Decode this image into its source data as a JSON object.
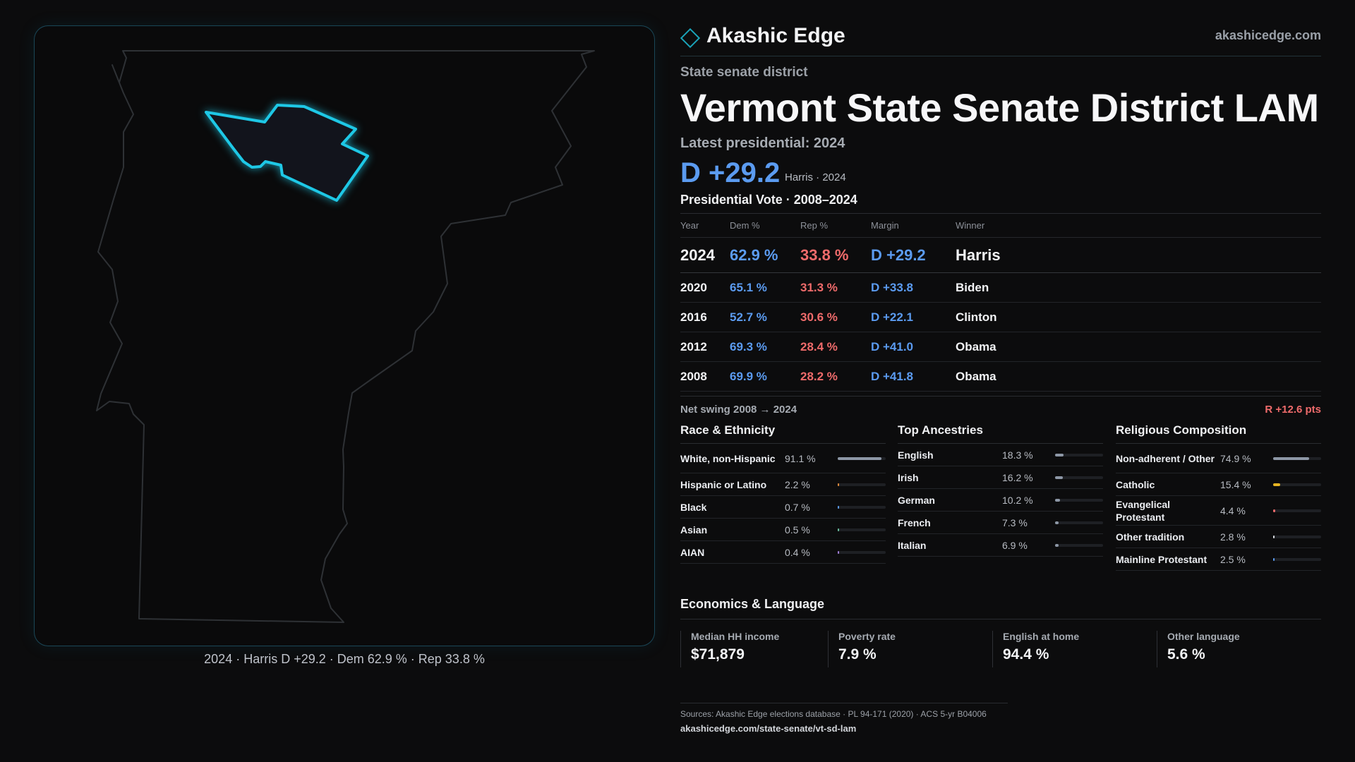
{
  "brand": {
    "name": "Akashic Edge",
    "url": "akashicedge.com",
    "accent": "#1aa3b8"
  },
  "header": {
    "kicker": "State senate district",
    "title": "Vermont State Senate District LAM",
    "latest_label": "Latest presidential: 2024",
    "margin": "D +29.2",
    "margin_sub": "Harris · 2024"
  },
  "votes": {
    "title": "Presidential Vote · 2008–2024",
    "headers": [
      "Year",
      "Dem %",
      "Rep %",
      "Margin",
      "Winner"
    ],
    "rows": [
      {
        "year": "2024",
        "dem": "62.9 %",
        "rep": "33.8 %",
        "margin": "D +29.2",
        "winner": "Harris"
      },
      {
        "year": "2020",
        "dem": "65.1 %",
        "rep": "31.3 %",
        "margin": "D +33.8",
        "winner": "Biden"
      },
      {
        "year": "2016",
        "dem": "52.7 %",
        "rep": "30.6 %",
        "margin": "D +22.1",
        "winner": "Clinton"
      },
      {
        "year": "2012",
        "dem": "69.3 %",
        "rep": "28.4 %",
        "margin": "D +41.0",
        "winner": "Obama"
      },
      {
        "year": "2008",
        "dem": "69.9 %",
        "rep": "28.2 %",
        "margin": "D +41.8",
        "winner": "Obama"
      }
    ],
    "dem_color": "#5b9bf0",
    "rep_color": "#ef6b6b"
  },
  "swing": {
    "label": "Net swing 2008 → 2024",
    "value": "R +12.6 pts"
  },
  "race": {
    "title": "Race & Ethnicity",
    "items": [
      {
        "name": "White, non-Hispanic",
        "pct": "91.1 %",
        "value": 91.1,
        "color": "#8d97a6"
      },
      {
        "name": "Hispanic or Latino",
        "pct": "2.2 %",
        "value": 2.2,
        "color": "#e08a3a"
      },
      {
        "name": "Black",
        "pct": "0.7 %",
        "value": 0.7,
        "color": "#5b9bf0"
      },
      {
        "name": "Asian",
        "pct": "0.5 %",
        "value": 0.5,
        "color": "#6ac0a0"
      },
      {
        "name": "AIAN",
        "pct": "0.4 %",
        "value": 0.4,
        "color": "#a07cd8"
      }
    ]
  },
  "ancestry": {
    "title": "Top Ancestries",
    "items": [
      {
        "name": "English",
        "pct": "18.3 %",
        "value": 18.3,
        "color": "#8d97a6"
      },
      {
        "name": "Irish",
        "pct": "16.2 %",
        "value": 16.2,
        "color": "#8d97a6"
      },
      {
        "name": "German",
        "pct": "10.2 %",
        "value": 10.2,
        "color": "#8d97a6"
      },
      {
        "name": "French",
        "pct": "7.3 %",
        "value": 7.3,
        "color": "#8d97a6"
      },
      {
        "name": "Italian",
        "pct": "6.9 %",
        "value": 6.9,
        "color": "#8d97a6"
      }
    ]
  },
  "religion": {
    "title": "Religious Composition",
    "items": [
      {
        "name": "Non-adherent / Other",
        "pct": "74.9 %",
        "value": 74.9,
        "color": "#8d97a6"
      },
      {
        "name": "Catholic",
        "pct": "15.4 %",
        "value": 15.4,
        "color": "#e6b422"
      },
      {
        "name": "Evangelical Protestant",
        "pct": "4.4 %",
        "value": 4.4,
        "color": "#ef6b6b"
      },
      {
        "name": "Other tradition",
        "pct": "2.8 %",
        "value": 2.8,
        "color": "#d9dce1"
      },
      {
        "name": "Mainline Protestant",
        "pct": "2.5 %",
        "value": 2.5,
        "color": "#5b9bf0"
      }
    ]
  },
  "economics": {
    "title": "Economics & Language",
    "stats": [
      {
        "label": "Median HH income",
        "value": "$71,879"
      },
      {
        "label": "Poverty rate",
        "value": "7.9 %"
      },
      {
        "label": "English at home",
        "value": "94.4 %"
      },
      {
        "label": "Other language",
        "value": "5.6 %"
      }
    ]
  },
  "sources": {
    "line1": "Sources: Akashic Edge elections database · PL 94-171 (2020) · ACS 5-yr B04006",
    "line2": "akashicedge.com/state-senate/vt-sd-lam"
  },
  "map": {
    "caption": "2024 · Harris D +29.2 · Dem 62.9 % · Rep 33.8 %",
    "district_color": "#1ec8e6"
  }
}
